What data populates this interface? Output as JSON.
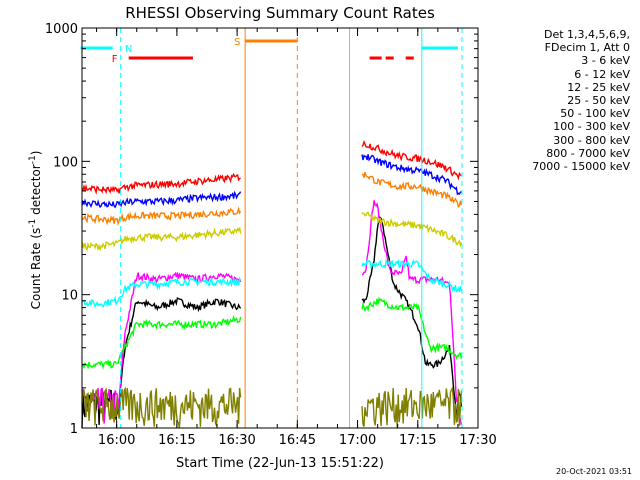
{
  "chart_data": {
    "type": "line",
    "title": "RHESSI Observing Summary Count Rates",
    "xlabel": "Start Time (22-Jun-13 15:51:22)",
    "ylabel_main": "Count Rate (s",
    "ylabel_mid": " detector",
    "ylabel_end": ")",
    "ylabel_sup": "-1",
    "y_scale": "log",
    "xlim": [
      "15:51:22",
      "17:30"
    ],
    "ylim": [
      1,
      1000
    ],
    "x_ticks": [
      "16:00",
      "16:15",
      "16:30",
      "16:45",
      "17:00",
      "17:15",
      "17:30"
    ],
    "y_ticks": [
      "1",
      "10",
      "100",
      "1000"
    ],
    "legend_header": [
      "Det 1,3,4,5,6,9,",
      "FDecim 1, Att 0"
    ],
    "series": [
      {
        "name": "3 - 6 keV",
        "color": "#000000",
        "points": [
          [
            "15:51",
            1
          ],
          [
            "16:00",
            1
          ],
          [
            "16:02",
            4
          ],
          [
            "16:05",
            9
          ],
          [
            "16:10",
            8
          ],
          [
            "16:15",
            9
          ],
          [
            "16:20",
            8
          ],
          [
            "16:25",
            9
          ],
          [
            "16:30",
            8
          ],
          [
            "17:02",
            9
          ],
          [
            "17:04",
            17
          ],
          [
            "17:05",
            33
          ],
          [
            "17:06",
            38
          ],
          [
            "17:07",
            25
          ],
          [
            "17:09",
            12
          ],
          [
            "17:12",
            9
          ],
          [
            "17:15",
            6
          ],
          [
            "17:17",
            3
          ],
          [
            "17:20",
            3
          ],
          [
            "17:23",
            4
          ],
          [
            "17:25",
            1
          ]
        ]
      },
      {
        "name": "6 - 12 keV",
        "color": "#ff00ff",
        "points": [
          [
            "15:51",
            1
          ],
          [
            "16:00",
            1
          ],
          [
            "16:02",
            5
          ],
          [
            "16:05",
            14
          ],
          [
            "16:10",
            13
          ],
          [
            "16:15",
            14
          ],
          [
            "16:20",
            13
          ],
          [
            "16:25",
            14
          ],
          [
            "16:30",
            13
          ],
          [
            "17:02",
            15
          ],
          [
            "17:04",
            50
          ],
          [
            "17:05",
            45
          ],
          [
            "17:06",
            30
          ],
          [
            "17:08",
            15
          ],
          [
            "17:11",
            14
          ],
          [
            "17:12",
            20
          ],
          [
            "17:13",
            13
          ],
          [
            "17:17",
            13
          ],
          [
            "17:20",
            13
          ],
          [
            "17:23",
            12
          ],
          [
            "17:25",
            1
          ]
        ]
      },
      {
        "name": "12 - 25 keV",
        "color": "#00ff00",
        "points": [
          [
            "15:51",
            3
          ],
          [
            "16:00",
            3
          ],
          [
            "16:02",
            4
          ],
          [
            "16:05",
            6
          ],
          [
            "16:10",
            6
          ],
          [
            "16:15",
            6
          ],
          [
            "16:20",
            6
          ],
          [
            "16:25",
            6
          ],
          [
            "16:30",
            6.5
          ],
          [
            "17:02",
            8
          ],
          [
            "17:05",
            9
          ],
          [
            "17:10",
            8
          ],
          [
            "17:15",
            8
          ],
          [
            "17:18",
            4
          ],
          [
            "17:22",
            4
          ],
          [
            "17:25",
            3.5
          ]
        ]
      },
      {
        "name": "25 - 50 keV",
        "color": "#00ffff",
        "points": [
          [
            "15:51",
            9
          ],
          [
            "15:55",
            8.5
          ],
          [
            "16:00",
            9
          ],
          [
            "16:02",
            11
          ],
          [
            "16:05",
            12
          ],
          [
            "16:10",
            12
          ],
          [
            "16:15",
            12.5
          ],
          [
            "16:20",
            12.5
          ],
          [
            "16:25",
            12.5
          ],
          [
            "16:30",
            12.5
          ],
          [
            "17:02",
            17
          ],
          [
            "17:05",
            17
          ],
          [
            "17:10",
            17
          ],
          [
            "17:15",
            17
          ],
          [
            "17:18",
            13
          ],
          [
            "17:22",
            12
          ],
          [
            "17:25",
            11
          ]
        ]
      },
      {
        "name": "50 - 100 keV",
        "color": "#cccc00",
        "points": [
          [
            "15:51",
            23
          ],
          [
            "15:55",
            23
          ],
          [
            "16:00",
            24
          ],
          [
            "16:02",
            26
          ],
          [
            "16:05",
            27
          ],
          [
            "16:10",
            27
          ],
          [
            "16:15",
            27
          ],
          [
            "16:20",
            28
          ],
          [
            "16:25",
            29
          ],
          [
            "16:30",
            30
          ],
          [
            "17:02",
            40
          ],
          [
            "17:05",
            36
          ],
          [
            "17:10",
            34
          ],
          [
            "17:15",
            33
          ],
          [
            "17:18",
            31
          ],
          [
            "17:22",
            28
          ],
          [
            "17:25",
            25
          ]
        ]
      },
      {
        "name": "100 - 300 keV",
        "color": "#ff8000",
        "points": [
          [
            "15:51",
            38
          ],
          [
            "15:55",
            37
          ],
          [
            "16:00",
            36
          ],
          [
            "16:02",
            38
          ],
          [
            "16:05",
            39
          ],
          [
            "16:10",
            39
          ],
          [
            "16:15",
            39
          ],
          [
            "16:20",
            40
          ],
          [
            "16:25",
            41
          ],
          [
            "16:30",
            42
          ],
          [
            "17:02",
            80
          ],
          [
            "17:05",
            70
          ],
          [
            "17:10",
            65
          ],
          [
            "17:15",
            65
          ],
          [
            "17:18",
            60
          ],
          [
            "17:22",
            55
          ],
          [
            "17:25",
            48
          ]
        ]
      },
      {
        "name": "300 - 800 keV",
        "color": "#0000ff",
        "points": [
          [
            "15:51",
            50
          ],
          [
            "15:55",
            48
          ],
          [
            "16:00",
            47
          ],
          [
            "16:02",
            49
          ],
          [
            "16:05",
            50
          ],
          [
            "16:10",
            50
          ],
          [
            "16:15",
            51
          ],
          [
            "16:20",
            53
          ],
          [
            "16:25",
            54
          ],
          [
            "16:30",
            55
          ],
          [
            "17:02",
            110
          ],
          [
            "17:05",
            100
          ],
          [
            "17:10",
            90
          ],
          [
            "17:15",
            85
          ],
          [
            "17:18",
            80
          ],
          [
            "17:22",
            72
          ],
          [
            "17:25",
            60
          ]
        ]
      },
      {
        "name": "800 - 7000 keV",
        "color": "#ff0000",
        "points": [
          [
            "15:51",
            63
          ],
          [
            "15:55",
            62
          ],
          [
            "16:00",
            60
          ],
          [
            "16:02",
            64
          ],
          [
            "16:05",
            66
          ],
          [
            "16:10",
            67
          ],
          [
            "16:15",
            68
          ],
          [
            "16:20",
            71
          ],
          [
            "16:25",
            73
          ],
          [
            "16:30",
            76
          ],
          [
            "17:02",
            135
          ],
          [
            "17:05",
            125
          ],
          [
            "17:10",
            110
          ],
          [
            "17:15",
            105
          ],
          [
            "17:18",
            100
          ],
          [
            "17:22",
            90
          ],
          [
            "17:25",
            78
          ]
        ]
      },
      {
        "name": "7000 - 15000 keV",
        "color": "#808000",
        "points": [
          [
            "15:51",
            1
          ],
          [
            "16:00",
            1
          ],
          [
            "16:30",
            1
          ],
          [
            "17:02",
            1
          ],
          [
            "17:15",
            1
          ],
          [
            "17:25",
            1
          ]
        ]
      }
    ],
    "bars": [
      {
        "label": "N",
        "color": "#00ffff",
        "segments": [
          [
            "15:51",
            "15:59"
          ],
          [
            "17:16",
            "17:25"
          ]
        ]
      },
      {
        "label": "F",
        "color": "#ff0000",
        "segments": [
          [
            "16:03",
            "16:19"
          ],
          [
            "17:03",
            "17:06"
          ],
          [
            "17:07",
            "17:09"
          ],
          [
            "17:12",
            "17:14"
          ]
        ]
      },
      {
        "label": "S",
        "color": "#ff8000",
        "segments": [
          [
            "16:32",
            "16:45"
          ]
        ]
      }
    ],
    "vlines": [
      {
        "time": "15:51:22",
        "color": "#00ffff",
        "style": "solid"
      },
      {
        "time": "16:01",
        "color": "#00ffff",
        "style": "dashed"
      },
      {
        "time": "16:32",
        "color": "#ff8000",
        "style": "solid"
      },
      {
        "time": "16:45",
        "color": "#ff8000",
        "style": "dashed"
      },
      {
        "time": "16:58",
        "color": "#00ffff",
        "style": "solid"
      },
      {
        "time": "17:16",
        "color": "#00ffff",
        "style": "solid"
      },
      {
        "time": "17:26",
        "color": "#00ffff",
        "style": "dashed"
      }
    ]
  },
  "footer": {
    "timestamp": "20-Oct-2021 03:51"
  }
}
